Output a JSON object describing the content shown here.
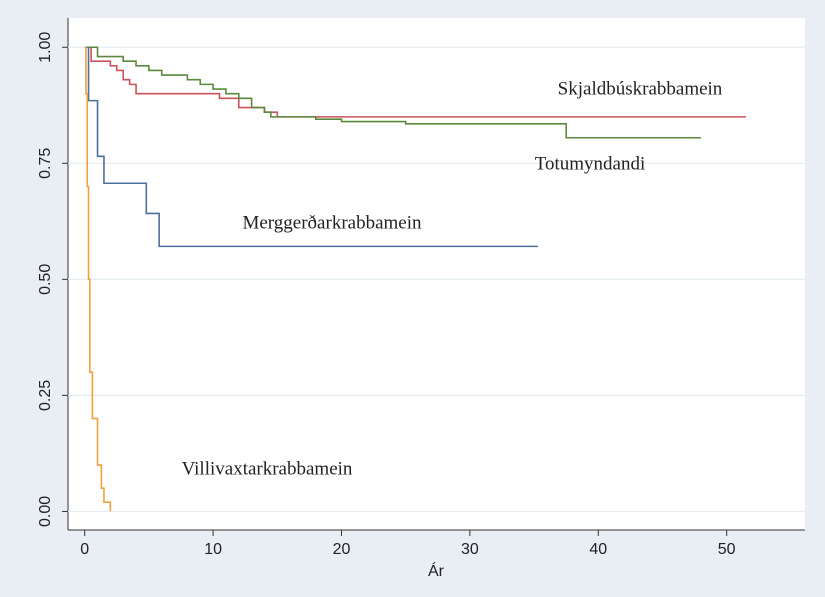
{
  "chart_data": {
    "type": "step",
    "step": "post",
    "x_label": "Ár",
    "xlim": [
      -1.3,
      56.1
    ],
    "ylim": [
      -0.04,
      1.063
    ],
    "xticks": [
      0,
      10,
      20,
      30,
      40,
      50
    ],
    "yticks": [
      {
        "value": 0,
        "label": "0.00"
      },
      0.25,
      {
        "value": 0.5,
        "label": "0.50"
      },
      0.75,
      {
        "value": 1,
        "label": "1.00"
      }
    ],
    "grid": true,
    "series": [
      {
        "name": "Skjaldbúskrabbamein",
        "color": "#c9545c",
        "x": [
          0,
          0.5,
          2,
          2.5,
          3,
          3.5,
          4,
          10.5,
          12,
          14,
          15,
          51.5
        ],
        "values": [
          1,
          0.97,
          0.96,
          0.95,
          0.93,
          0.92,
          0.9,
          0.89,
          0.87,
          0.86,
          0.85,
          0.85
        ]
      },
      {
        "name": "Totumyndandi",
        "color": "#5b8a3c",
        "x": [
          0,
          1,
          3,
          4,
          5,
          6,
          8,
          9,
          10,
          11,
          12,
          13,
          14,
          14.5,
          18,
          20,
          25,
          37.5,
          48
        ],
        "values": [
          1,
          0.98,
          0.97,
          0.96,
          0.95,
          0.94,
          0.93,
          0.92,
          0.91,
          0.9,
          0.89,
          0.87,
          0.86,
          0.85,
          0.845,
          0.84,
          0.835,
          0.805,
          0.805
        ]
      },
      {
        "name": "Merggerðarkrabbamein",
        "color": "#4d6f9c",
        "x": [
          0,
          0.3,
          1,
          1.5,
          4.8,
          5.8,
          35.3
        ],
        "values": [
          1,
          0.885,
          0.765,
          0.707,
          0.642,
          0.571,
          0.571
        ]
      },
      {
        "name": "Villivaxtarkrabbamein",
        "color": "#f0a040",
        "x": [
          0,
          0.1,
          0.2,
          0.3,
          0.4,
          0.6,
          1.0,
          1.3,
          1.5,
          2.0
        ],
        "values": [
          1,
          0.9,
          0.7,
          0.5,
          0.3,
          0.2,
          0.1,
          0.05,
          0.02,
          0
        ]
      }
    ]
  }
}
